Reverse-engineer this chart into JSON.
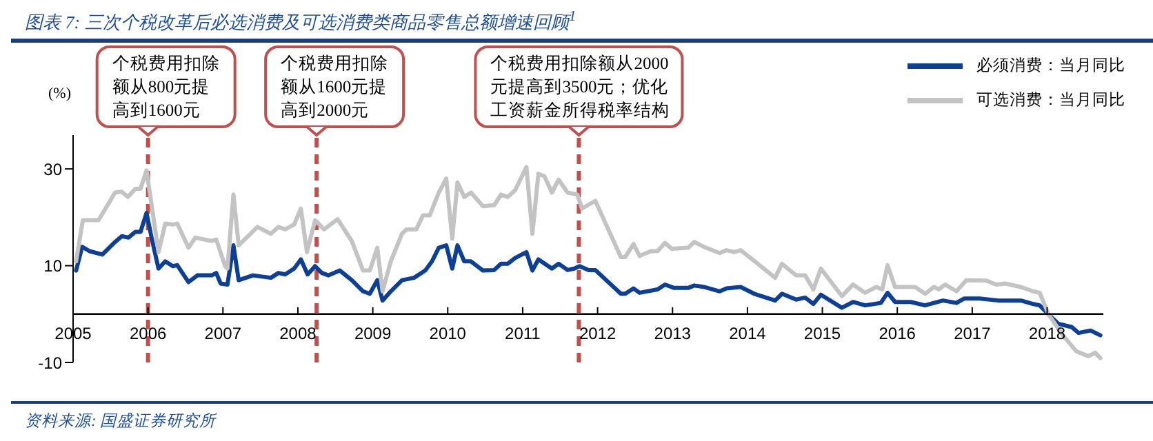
{
  "chart_data": {
    "type": "line",
    "title": "图表 7: 三次个税改革后必选消费及可选消费类商品零售总额增速回顾$^{1}$",
    "ylabel": "(%)",
    "annotations": [
      "资料来源: 国盛证券研究所"
    ],
    "xlim": [
      2005,
      2018.75
    ],
    "xticks": [
      2005,
      2006,
      2007,
      2008,
      2009,
      2010,
      2011,
      2012,
      2013,
      2014,
      2015,
      2016,
      2017,
      2018
    ],
    "ylim": [
      -10,
      37
    ],
    "yticks": [
      -10,
      10,
      30
    ],
    "legend": "top right",
    "grid": false,
    "line_style": "solid",
    "marker": "none",
    "ref_lines": [
      {
        "axis": "x",
        "value": 2006.0,
        "label": "个税费用扣除额从800元提高到1600元",
        "color": "#c0504d",
        "line_style": "dashed"
      },
      {
        "axis": "x",
        "value": 2008.25,
        "label": "个税费用扣除额从1600元提高到2000元",
        "color": "#c0504d",
        "line_style": "dashed"
      },
      {
        "axis": "x",
        "value": 2011.75,
        "label": "个税费用扣除额从2000元提高到3500元；优化工资薪金所得税率结构",
        "color": "#c0504d",
        "line_style": "dashed"
      }
    ],
    "series": [
      {
        "name": "必须消费：当月同比",
        "color": "#0d3f94",
        "x": [
          2005.04,
          2005.12,
          2005.22,
          2005.39,
          2005.56,
          2005.65,
          2005.74,
          2005.83,
          2005.9,
          2005.98,
          2006.05,
          2006.14,
          2006.23,
          2006.33,
          2006.39,
          2006.54,
          2006.66,
          2006.85,
          2006.91,
          2006.97,
          2007.06,
          2007.14,
          2007.21,
          2007.4,
          2007.64,
          2007.74,
          2007.83,
          2007.95,
          2008.04,
          2008.13,
          2008.23,
          2008.32,
          2008.41,
          2008.56,
          2008.72,
          2008.87,
          2008.96,
          2009.06,
          2009.13,
          2009.24,
          2009.39,
          2009.55,
          2009.7,
          2009.79,
          2009.88,
          2009.98,
          2010.06,
          2010.13,
          2010.22,
          2010.31,
          2010.47,
          2010.62,
          2010.71,
          2010.8,
          2010.9,
          2011.05,
          2011.13,
          2011.21,
          2011.39,
          2011.48,
          2011.6,
          2011.69,
          2011.76,
          2011.88,
          2011.97,
          2012.31,
          2012.37,
          2012.48,
          2012.56,
          2012.8,
          2012.9,
          2013.02,
          2013.21,
          2013.29,
          2013.42,
          2013.63,
          2013.72,
          2013.91,
          2014.09,
          2014.37,
          2014.46,
          2014.65,
          2014.77,
          2014.88,
          2014.98,
          2015.26,
          2015.41,
          2015.57,
          2015.78,
          2015.87,
          2015.97,
          2016.18,
          2016.37,
          2016.61,
          2016.79,
          2016.89,
          2017.1,
          2017.35,
          2017.65,
          2017.81,
          2017.9,
          2018.02,
          2018.15,
          2018.33,
          2018.42,
          2018.58,
          2018.71
        ],
        "values": [
          9.0,
          13.9,
          13.0,
          12.3,
          14.9,
          16.1,
          15.8,
          17.0,
          17.0,
          20.9,
          15.6,
          9.4,
          10.9,
          9.9,
          10.1,
          6.6,
          8.0,
          8.0,
          8.5,
          6.3,
          6.1,
          14.2,
          7.0,
          8.0,
          7.5,
          8.5,
          8.2,
          9.4,
          11.3,
          8.2,
          9.9,
          8.5,
          8.0,
          9.0,
          7.0,
          4.7,
          4.2,
          7.0,
          2.8,
          4.7,
          7.0,
          7.5,
          9.0,
          10.9,
          13.7,
          14.2,
          9.4,
          14.2,
          10.9,
          10.9,
          9.0,
          9.1,
          10.4,
          10.4,
          11.6,
          12.8,
          9.0,
          11.3,
          9.4,
          10.4,
          9.1,
          9.4,
          9.9,
          9.1,
          9.1,
          4.2,
          4.2,
          5.3,
          4.4,
          5.1,
          6.1,
          5.4,
          5.4,
          5.9,
          5.6,
          4.7,
          5.3,
          5.6,
          4.2,
          2.8,
          4.2,
          3.0,
          3.4,
          2.1,
          4.0,
          1.3,
          2.5,
          1.8,
          2.3,
          4.4,
          2.5,
          2.5,
          1.8,
          2.8,
          2.3,
          3.2,
          3.2,
          2.8,
          2.8,
          2.1,
          1.8,
          -0.1,
          -2.0,
          -2.7,
          -3.9,
          -3.4,
          -4.4
        ]
      },
      {
        "name": "可选消费：当月同比",
        "color": "#c3c3c3",
        "x": [
          2005.04,
          2005.13,
          2005.34,
          2005.56,
          2005.65,
          2005.73,
          2005.83,
          2005.9,
          2005.98,
          2006.05,
          2006.14,
          2006.23,
          2006.33,
          2006.39,
          2006.54,
          2006.63,
          2006.85,
          2006.91,
          2007.03,
          2007.06,
          2007.14,
          2007.21,
          2007.46,
          2007.64,
          2007.74,
          2007.83,
          2007.95,
          2008.04,
          2008.12,
          2008.23,
          2008.35,
          2008.53,
          2008.72,
          2008.87,
          2008.96,
          2009.06,
          2009.13,
          2009.24,
          2009.39,
          2009.45,
          2009.58,
          2009.67,
          2009.76,
          2009.88,
          2009.98,
          2010.06,
          2010.13,
          2010.22,
          2010.31,
          2010.47,
          2010.62,
          2010.71,
          2010.8,
          2010.9,
          2011.05,
          2011.13,
          2011.21,
          2011.29,
          2011.39,
          2011.48,
          2011.6,
          2011.73,
          2011.79,
          2011.97,
          2012.31,
          2012.37,
          2012.48,
          2012.56,
          2012.71,
          2012.8,
          2012.9,
          2012.99,
          2013.21,
          2013.29,
          2013.42,
          2013.63,
          2013.72,
          2013.82,
          2013.91,
          2014.09,
          2014.37,
          2014.46,
          2014.65,
          2014.77,
          2014.88,
          2014.98,
          2015.26,
          2015.41,
          2015.57,
          2015.72,
          2015.8,
          2015.87,
          2015.97,
          2016.24,
          2016.37,
          2016.49,
          2016.55,
          2016.64,
          2016.79,
          2016.92,
          2017.19,
          2017.32,
          2017.44,
          2017.65,
          2017.81,
          2017.9,
          2018.02,
          2018.21,
          2018.39,
          2018.55,
          2018.64,
          2018.71
        ],
        "values": [
          10.9,
          19.4,
          19.4,
          25.1,
          25.3,
          24.2,
          25.9,
          25.9,
          29.7,
          22.3,
          12.8,
          18.7,
          18.5,
          18.7,
          13.7,
          15.8,
          15.1,
          15.4,
          9.9,
          9.4,
          24.7,
          14.2,
          18.0,
          16.6,
          18.0,
          17.5,
          18.5,
          21.8,
          12.8,
          19.4,
          17.5,
          19.6,
          15.1,
          9.0,
          9.0,
          13.7,
          4.7,
          10.9,
          16.6,
          17.5,
          17.5,
          20.4,
          20.4,
          25.1,
          28.0,
          15.6,
          27.2,
          24.2,
          25.1,
          22.3,
          22.5,
          24.7,
          24.2,
          25.6,
          30.4,
          16.6,
          29.0,
          28.5,
          25.1,
          27.8,
          25.1,
          24.7,
          21.8,
          23.4,
          11.8,
          11.8,
          14.5,
          12.0,
          13.0,
          13.0,
          14.7,
          13.5,
          13.7,
          14.9,
          13.9,
          12.6,
          13.2,
          12.8,
          13.2,
          11.0,
          7.5,
          10.4,
          8.0,
          8.0,
          5.1,
          9.4,
          3.7,
          6.1,
          4.4,
          5.6,
          5.1,
          10.1,
          5.6,
          5.6,
          4.2,
          5.6,
          5.1,
          6.1,
          4.7,
          7.0,
          6.9,
          6.1,
          6.3,
          5.6,
          4.7,
          4.4,
          -0.1,
          -4.4,
          -7.7,
          -8.7,
          -8.0,
          -9.1
        ]
      }
    ]
  }
}
